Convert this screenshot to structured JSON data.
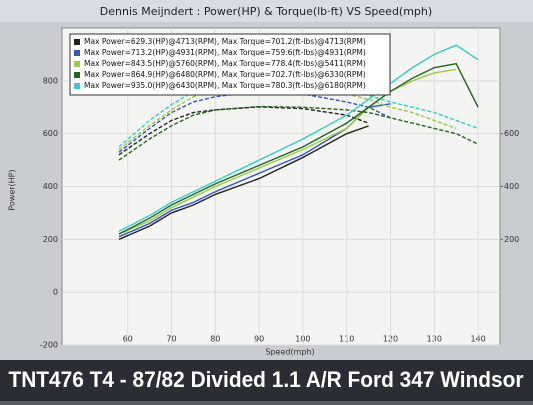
{
  "chart_data": {
    "type": "line",
    "title": "Dennis Meijndert : Power(HP) & Torque(lb·ft) VS Speed(mph)",
    "x_label": "Speed(mph)",
    "y_label": "Power(HP)",
    "caption": "TNT476 T4 - 87/82 Divided 1.1 A/R Ford 347 Windsor",
    "x": [
      58,
      65,
      70,
      75,
      80,
      90,
      100,
      110,
      115,
      120,
      125,
      130,
      135,
      140
    ],
    "xlim": [
      45,
      145
    ],
    "xticks": [
      60,
      70,
      80,
      90,
      100,
      110,
      120,
      130,
      140
    ],
    "ylim": [
      -200,
      1000
    ],
    "yticks": [
      -200,
      0,
      200,
      400,
      600,
      800
    ],
    "y2lim": [
      -200,
      1000
    ],
    "y2ticks": [
      200,
      400,
      600
    ],
    "grid": true,
    "legend": "upper left",
    "series": [
      {
        "name": "Max Power=629.3(HP)@4713(RPM), Max Torque=701.2(ft-lbs)@4713(RPM)",
        "color": "#222222",
        "values": [
          200,
          250,
          300,
          330,
          370,
          430,
          510,
          600,
          629.3,
          null,
          null,
          null,
          null,
          null
        ],
        "torque": [
          520,
          600,
          650,
          680,
          690,
          701.2,
          695,
          670,
          640,
          null,
          null,
          null,
          null,
          null
        ]
      },
      {
        "name": "Max Power=713.2(HP)@4931(RPM), Max Torque=759.6(ft-lbs)@4931(RPM)",
        "color": "#3355cc",
        "values": [
          210,
          260,
          310,
          340,
          380,
          450,
          520,
          620,
          700,
          713.2,
          null,
          null,
          null,
          null
        ],
        "torque": [
          530,
          620,
          680,
          720,
          740,
          759.6,
          750,
          720,
          700,
          660,
          null,
          null,
          null,
          null
        ]
      },
      {
        "name": "Max Power=843.5(HP)@5760(RPM), Max Torque=778.4(ft-lbs)@5411(RPM)",
        "color": "#99cc44",
        "values": [
          220,
          270,
          320,
          360,
          400,
          470,
          540,
          620,
          700,
          760,
          800,
          830,
          843.5,
          null
        ],
        "torque": [
          540,
          630,
          690,
          740,
          770,
          778.4,
          770,
          750,
          730,
          700,
          680,
          650,
          620,
          null
        ]
      },
      {
        "name": "Max Power=864.9(HP)@6480(RPM), Max Torque=702.7(ft-lbs)@6330(RPM)",
        "color": "#226622",
        "values": [
          220,
          280,
          330,
          370,
          410,
          480,
          550,
          640,
          700,
          760,
          810,
          850,
          864.9,
          700
        ],
        "torque": [
          500,
          580,
          630,
          670,
          690,
          702.7,
          700,
          690,
          680,
          660,
          640,
          620,
          600,
          560
        ]
      },
      {
        "name": "Max Power=935.0(HP)@6430(RPM), Max Torque=780.3(ft-lbs)@6180(RPM)",
        "color": "#33cccc",
        "values": [
          230,
          290,
          340,
          380,
          420,
          500,
          580,
          670,
          730,
          790,
          850,
          900,
          935.0,
          880
        ],
        "torque": [
          550,
          650,
          710,
          760,
          775,
          780.3,
          775,
          760,
          745,
          720,
          700,
          680,
          650,
          620
        ]
      }
    ]
  }
}
